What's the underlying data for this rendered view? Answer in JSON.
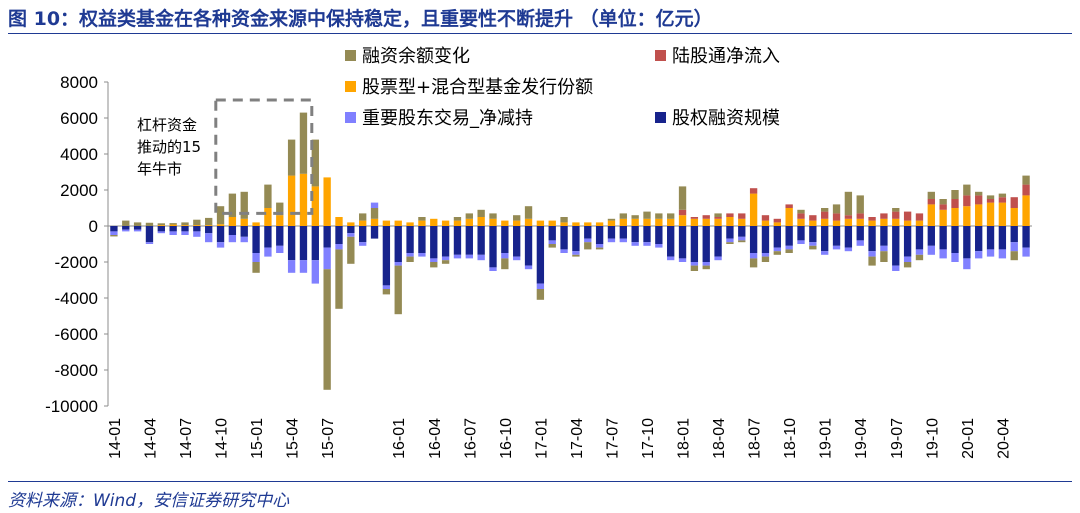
{
  "figure": {
    "title": "图 10：权益类基金在各种资金来源中保持稳定，且重要性不断提升 （单位：亿元）",
    "source": "资料来源：Wind，安信证券研究中心",
    "annotation_lines": [
      "杠杆资金",
      "推动的15",
      "年牛市"
    ]
  },
  "colors": {
    "title": "#1f3a93",
    "margin": "#948a54",
    "northbound": "#c0504d",
    "fund": "#ffa500",
    "holder": "#8080ff",
    "equity": "#17238c",
    "annotation_box": "#808080"
  },
  "chart_data": {
    "type": "bar",
    "stacked": true,
    "title": "",
    "xlabel": "",
    "ylabel": "",
    "ylim": [
      -10000,
      8000
    ],
    "yticks": [
      8000,
      6000,
      4000,
      2000,
      0,
      -2000,
      -4000,
      -6000,
      -8000,
      -10000
    ],
    "xtick_labels": [
      "14-01",
      "14-04",
      "14-07",
      "14-10",
      "15-01",
      "15-04",
      "15-07",
      "16-01",
      "16-04",
      "16-07",
      "16-10",
      "17-01",
      "17-04",
      "17-07",
      "17-10",
      "18-01",
      "18-04",
      "18-07",
      "18-10",
      "19-01",
      "19-04",
      "19-07",
      "19-10",
      "20-01",
      "20-04"
    ],
    "legend_placement": "top-center",
    "categories": [
      "14-01",
      "14-02",
      "14-03",
      "14-04",
      "14-05",
      "14-06",
      "14-07",
      "14-08",
      "14-09",
      "14-10",
      "14-11",
      "14-12",
      "15-01",
      "15-02",
      "15-03",
      "15-04",
      "15-05",
      "15-06",
      "15-07",
      "15-08",
      "15-09",
      "15-10",
      "15-11",
      "15-12",
      "16-01",
      "16-02",
      "16-03",
      "16-04",
      "16-05",
      "16-06",
      "16-07",
      "16-08",
      "16-09",
      "16-10",
      "16-11",
      "16-12",
      "17-01",
      "17-02",
      "17-03",
      "17-04",
      "17-05",
      "17-06",
      "17-07",
      "17-08",
      "17-09",
      "17-10",
      "17-11",
      "17-12",
      "18-01",
      "18-02",
      "18-03",
      "18-04",
      "18-05",
      "18-06",
      "18-07",
      "18-08",
      "18-09",
      "18-10",
      "18-11",
      "18-12",
      "19-01",
      "19-02",
      "19-03",
      "19-04",
      "19-05",
      "19-06",
      "19-07",
      "19-08",
      "19-09",
      "19-10",
      "19-11",
      "19-12",
      "20-01",
      "20-02",
      "20-03",
      "20-04",
      "20-05",
      "20-06"
    ],
    "series": [
      {
        "name": "融资余额变化",
        "key": "margin",
        "values": [
          -80,
          300,
          200,
          180,
          100,
          80,
          150,
          300,
          400,
          1000,
          1300,
          1500,
          -600,
          1300,
          700,
          2000,
          3400,
          2600,
          -6700,
          -3300,
          -1500,
          400,
          600,
          -300,
          -2700,
          -300,
          200,
          -300,
          -200,
          200,
          300,
          400,
          300,
          -600,
          300,
          700,
          -600,
          -200,
          300,
          -100,
          -400,
          -100,
          100,
          300,
          200,
          400,
          300,
          300,
          1300,
          -300,
          -200,
          200,
          -100,
          -100,
          -500,
          -300,
          -200,
          -200,
          200,
          -200,
          200,
          500,
          1300,
          1000,
          -500,
          -600,
          200,
          -300,
          -300,
          400,
          300,
          500,
          600,
          200,
          200,
          200,
          -500,
          500
        ]
      },
      {
        "name": "陆股通净流入",
        "key": "northbound",
        "values": [
          0,
          0,
          0,
          0,
          0,
          0,
          0,
          0,
          0,
          0,
          0,
          0,
          0,
          0,
          0,
          0,
          0,
          0,
          0,
          0,
          0,
          0,
          0,
          0,
          0,
          0,
          0,
          0,
          0,
          0,
          0,
          0,
          0,
          0,
          0,
          0,
          0,
          0,
          0,
          0,
          0,
          0,
          0,
          0,
          0,
          0,
          0,
          0,
          300,
          100,
          200,
          100,
          200,
          300,
          300,
          300,
          200,
          200,
          300,
          300,
          400,
          400,
          200,
          300,
          200,
          300,
          400,
          500,
          400,
          300,
          300,
          500,
          600,
          500,
          200,
          300,
          600,
          600
        ]
      },
      {
        "name": "股票型+混合型基金发行份额",
        "key": "fund",
        "values": [
          0,
          0,
          0,
          0,
          50,
          80,
          50,
          50,
          50,
          100,
          500,
          400,
          200,
          1000,
          600,
          2800,
          2900,
          2200,
          2700,
          500,
          200,
          300,
          400,
          300,
          300,
          200,
          300,
          400,
          300,
          300,
          400,
          500,
          400,
          300,
          300,
          400,
          300,
          300,
          200,
          200,
          200,
          200,
          300,
          400,
          400,
          400,
          400,
          400,
          600,
          400,
          400,
          400,
          500,
          400,
          1800,
          300,
          200,
          1000,
          400,
          300,
          400,
          300,
          400,
          400,
          300,
          400,
          400,
          300,
          300,
          1200,
          900,
          1000,
          1100,
          1200,
          1300,
          1300,
          1000,
          1700
        ]
      },
      {
        "name": "重要股东交易_净减持",
        "key": "holder",
        "values": [
          -200,
          -100,
          -100,
          -100,
          -100,
          -200,
          -200,
          -300,
          -500,
          -300,
          -400,
          -300,
          -500,
          -500,
          -400,
          -700,
          -700,
          -1300,
          -1200,
          -300,
          -200,
          -200,
          300,
          -200,
          -200,
          -200,
          -200,
          -200,
          -200,
          -200,
          -200,
          -300,
          -200,
          -300,
          -200,
          -200,
          -300,
          -200,
          -200,
          -200,
          -200,
          -200,
          -200,
          -200,
          -200,
          -200,
          -200,
          -200,
          -200,
          -200,
          -200,
          -200,
          -200,
          -200,
          -300,
          -200,
          -200,
          -200,
          -200,
          -200,
          -200,
          -200,
          -200,
          -300,
          -300,
          -300,
          -300,
          -300,
          -300,
          -500,
          -500,
          -500,
          -600,
          -400,
          -400,
          -500,
          -500,
          -500
        ]
      },
      {
        "name": "股权融资规模",
        "key": "equity",
        "values": [
          -300,
          -200,
          -200,
          -900,
          -300,
          -300,
          -300,
          -300,
          -400,
          -900,
          -500,
          -600,
          -1500,
          -1200,
          -1100,
          -1900,
          -1900,
          -1900,
          -1200,
          -1000,
          -400,
          -900,
          -700,
          -3300,
          -2000,
          -1500,
          -1500,
          -1800,
          -1700,
          -1600,
          -1600,
          -1600,
          -2300,
          -1500,
          -1700,
          -2200,
          -3200,
          -800,
          -1300,
          -1400,
          -700,
          -1000,
          -700,
          -700,
          -900,
          -900,
          -1000,
          -1700,
          -1800,
          -2000,
          -2000,
          -1700,
          -700,
          -600,
          -1500,
          -1500,
          -1200,
          -1100,
          -800,
          -900,
          -1400,
          -1100,
          -1200,
          -800,
          -1400,
          -1100,
          -2200,
          -1700,
          -1300,
          -1100,
          -1300,
          -1500,
          -1800,
          -1400,
          -1300,
          -1300,
          -900,
          -1200
        ]
      }
    ]
  }
}
